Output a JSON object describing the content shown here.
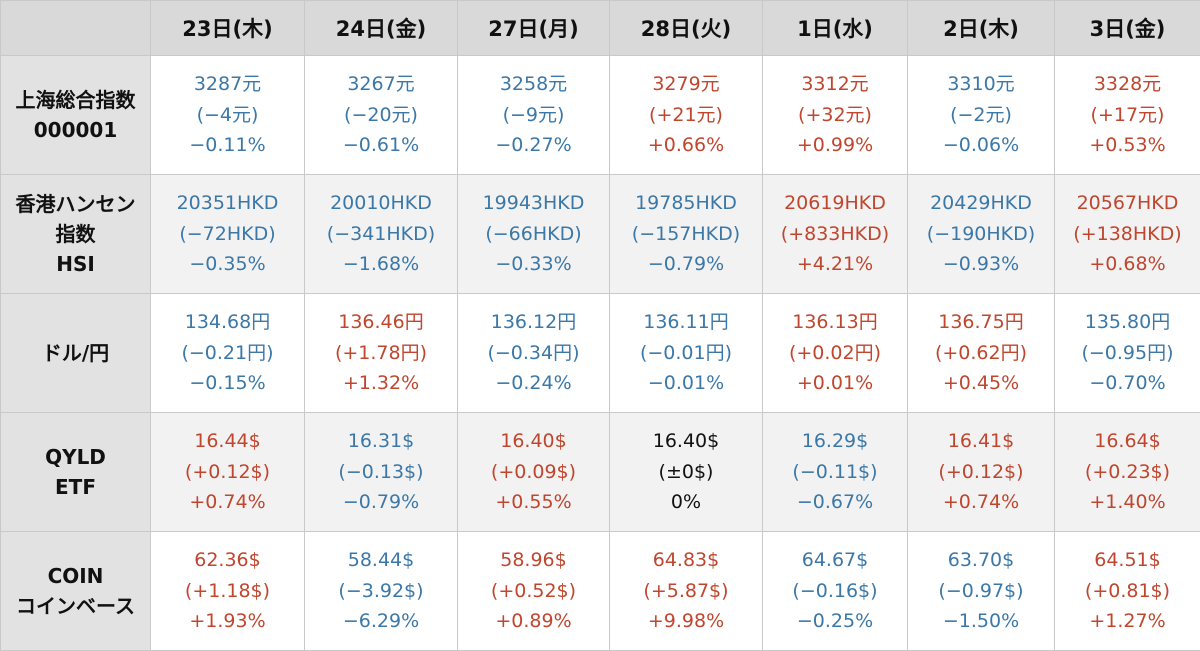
{
  "colors": {
    "up": "#c0462e",
    "down": "#3b78a8",
    "flat": "#111111"
  },
  "header": {
    "corner": "",
    "dates": [
      "23日(木)",
      "24日(金)",
      "27日(月)",
      "28日(火)",
      "1日(水)",
      "2日(木)",
      "3日(金)"
    ]
  },
  "rows": [
    {
      "label": [
        "上海総合指数",
        "000001"
      ],
      "cells": [
        {
          "price": "3287元",
          "change": "(−4元)",
          "pct": "−0.11%",
          "dir": "down"
        },
        {
          "price": "3267元",
          "change": "(−20元)",
          "pct": "−0.61%",
          "dir": "down"
        },
        {
          "price": "3258元",
          "change": "(−9元)",
          "pct": "−0.27%",
          "dir": "down"
        },
        {
          "price": "3279元",
          "change": "(+21元)",
          "pct": "+0.66%",
          "dir": "up"
        },
        {
          "price": "3312元",
          "change": "(+32元)",
          "pct": "+0.99%",
          "dir": "up"
        },
        {
          "price": "3310元",
          "change": "(−2元)",
          "pct": "−0.06%",
          "dir": "down"
        },
        {
          "price": "3328元",
          "change": "(+17元)",
          "pct": "+0.53%",
          "dir": "up"
        }
      ]
    },
    {
      "label": [
        "香港ハンセン",
        "指数",
        "HSI"
      ],
      "cells": [
        {
          "price": "20351HKD",
          "change": "(−72HKD)",
          "pct": "−0.35%",
          "dir": "down"
        },
        {
          "price": "20010HKD",
          "change": "(−341HKD)",
          "pct": "−1.68%",
          "dir": "down"
        },
        {
          "price": "19943HKD",
          "change": "(−66HKD)",
          "pct": "−0.33%",
          "dir": "down"
        },
        {
          "price": "19785HKD",
          "change": "(−157HKD)",
          "pct": "−0.79%",
          "dir": "down"
        },
        {
          "price": "20619HKD",
          "change": "(+833HKD)",
          "pct": "+4.21%",
          "dir": "up"
        },
        {
          "price": "20429HKD",
          "change": "(−190HKD)",
          "pct": "−0.93%",
          "dir": "down"
        },
        {
          "price": "20567HKD",
          "change": "(+138HKD)",
          "pct": "+0.68%",
          "dir": "up"
        }
      ]
    },
    {
      "label": [
        "ドル/円"
      ],
      "cells": [
        {
          "price": "134.68円",
          "change": "(−0.21円)",
          "pct": "−0.15%",
          "dir": "down"
        },
        {
          "price": "136.46円",
          "change": "(+1.78円)",
          "pct": "+1.32%",
          "dir": "up"
        },
        {
          "price": "136.12円",
          "change": "(−0.34円)",
          "pct": "−0.24%",
          "dir": "down"
        },
        {
          "price": "136.11円",
          "change": "(−0.01円)",
          "pct": "−0.01%",
          "dir": "down"
        },
        {
          "price": "136.13円",
          "change": "(+0.02円)",
          "pct": "+0.01%",
          "dir": "up"
        },
        {
          "price": "136.75円",
          "change": "(+0.62円)",
          "pct": "+0.45%",
          "dir": "up"
        },
        {
          "price": "135.80円",
          "change": "(−0.95円)",
          "pct": "−0.70%",
          "dir": "down"
        }
      ]
    },
    {
      "label": [
        "QYLD",
        "ETF"
      ],
      "cells": [
        {
          "price": "16.44$",
          "change": "(+0.12$)",
          "pct": "+0.74%",
          "dir": "up"
        },
        {
          "price": "16.31$",
          "change": "(−0.13$)",
          "pct": "−0.79%",
          "dir": "down"
        },
        {
          "price": "16.40$",
          "change": "(+0.09$)",
          "pct": "+0.55%",
          "dir": "up"
        },
        {
          "price": "16.40$",
          "change": "(±0$)",
          "pct": "0%",
          "dir": "flat"
        },
        {
          "price": "16.29$",
          "change": "(−0.11$)",
          "pct": "−0.67%",
          "dir": "down"
        },
        {
          "price": "16.41$",
          "change": "(+0.12$)",
          "pct": "+0.74%",
          "dir": "up"
        },
        {
          "price": "16.64$",
          "change": "(+0.23$)",
          "pct": "+1.40%",
          "dir": "up"
        }
      ]
    },
    {
      "label": [
        "COIN",
        "コインベース"
      ],
      "cells": [
        {
          "price": "62.36$",
          "change": "(+1.18$)",
          "pct": "+1.93%",
          "dir": "up"
        },
        {
          "price": "58.44$",
          "change": "(−3.92$)",
          "pct": "−6.29%",
          "dir": "down"
        },
        {
          "price": "58.96$",
          "change": "(+0.52$)",
          "pct": "+0.89%",
          "dir": "up"
        },
        {
          "price": "64.83$",
          "change": "(+5.87$)",
          "pct": "+9.98%",
          "dir": "up"
        },
        {
          "price": "64.67$",
          "change": "(−0.16$)",
          "pct": "−0.25%",
          "dir": "down"
        },
        {
          "price": "63.70$",
          "change": "(−0.97$)",
          "pct": "−1.50%",
          "dir": "down"
        },
        {
          "price": "64.51$",
          "change": "(+0.81$)",
          "pct": "+1.27%",
          "dir": "up"
        }
      ]
    }
  ]
}
